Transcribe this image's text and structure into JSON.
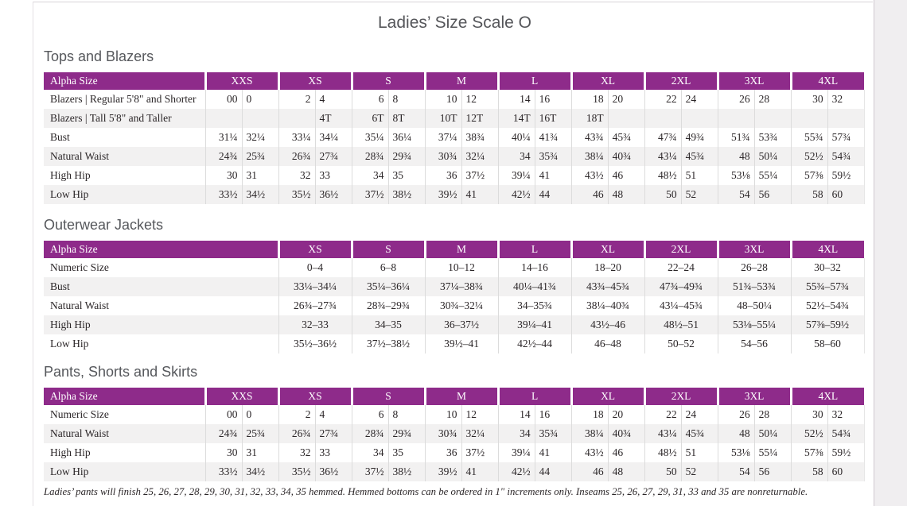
{
  "page": {
    "title": "Ladies’ Size Scale O",
    "footnote": "Ladies’ pants will finish 25, 26, 27, 28, 29, 30, 31, 32, 33, 34, 35 hemmed. Hemmed bottoms can be ordered in 1\" increments only. Inseams 25, 26, 27, 29, 31, 33 and 35 are nonreturnable."
  },
  "colors": {
    "header_bg": "#8e2b8a",
    "header_text": "#ffffff",
    "stripe": "#f2f1f1",
    "heading_text": "#56585c",
    "body_text": "#2b2628",
    "divider": "#dcdcdc",
    "gutter_bg": "#f0eef0"
  },
  "tables": [
    {
      "section_title": "Tops and Blazers",
      "type": "paired",
      "label_header": "Alpha Size",
      "size_headers": [
        "XXS",
        "XS",
        "S",
        "M",
        "L",
        "XL",
        "2XL",
        "3XL",
        "4XL"
      ],
      "rows": [
        {
          "label": "Blazers  |  Regular 5'8\" and Shorter",
          "values": [
            "00",
            "0",
            "2",
            "4",
            "6",
            "8",
            "10",
            "12",
            "14",
            "16",
            "18",
            "20",
            "22",
            "24",
            "26",
            "28",
            "30",
            "32"
          ]
        },
        {
          "label": "Blazers  |  Tall 5'8\" and Taller",
          "values": [
            "",
            "",
            "",
            "4T",
            "6T",
            "8T",
            "10T",
            "12T",
            "14T",
            "16T",
            "18T",
            "",
            "",
            "",
            "",
            "",
            "",
            ""
          ]
        },
        {
          "label": "Bust",
          "values": [
            "31¼",
            "32¼",
            "33¼",
            "34¼",
            "35¼",
            "36¼",
            "37¼",
            "38¾",
            "40¼",
            "41¾",
            "43¾",
            "45¾",
            "47¾",
            "49¾",
            "51¾",
            "53¾",
            "55¾",
            "57¾"
          ]
        },
        {
          "label": "Natural Waist",
          "values": [
            "24¾",
            "25¾",
            "26¾",
            "27¾",
            "28¾",
            "29¾",
            "30¾",
            "32¼",
            "34",
            "35¾",
            "38¼",
            "40¾",
            "43¼",
            "45¾",
            "48",
            "50¼",
            "52½",
            "54¾"
          ]
        },
        {
          "label": "High Hip",
          "values": [
            "30",
            "31",
            "32",
            "33",
            "34",
            "35",
            "36",
            "37½",
            "39¼",
            "41",
            "43½",
            "46",
            "48½",
            "51",
            "53⅛",
            "55¼",
            "57⅜",
            "59½"
          ]
        },
        {
          "label": "Low Hip",
          "values": [
            "33½",
            "34½",
            "35½",
            "36½",
            "37½",
            "38½",
            "39½",
            "41",
            "42½",
            "44",
            "46",
            "48",
            "50",
            "52",
            "54",
            "56",
            "58",
            "60"
          ]
        }
      ]
    },
    {
      "section_title": "Outerwear Jackets",
      "type": "single",
      "label_header": "Alpha Size",
      "size_headers": [
        "XS",
        "S",
        "M",
        "L",
        "XL",
        "2XL",
        "3XL",
        "4XL"
      ],
      "rows": [
        {
          "label": "Numeric Size",
          "values": [
            "0–4",
            "6–8",
            "10–12",
            "14–16",
            "18–20",
            "22–24",
            "26–28",
            "30–32"
          ]
        },
        {
          "label": "Bust",
          "values": [
            "33¼–34¼",
            "35¼–36¼",
            "37¼–38¾",
            "40¼–41¾",
            "43¾–45¾",
            "47¾–49¾",
            "51¾–53¾",
            "55¾–57¾"
          ]
        },
        {
          "label": "Natural Waist",
          "values": [
            "26¾–27¾",
            "28¾–29¾",
            "30¾–32¼",
            "34–35¾",
            "38¼–40¾",
            "43¼–45¾",
            "48–50¼",
            "52½–54¾"
          ]
        },
        {
          "label": "High Hip",
          "values": [
            "32–33",
            "34–35",
            "36–37½",
            "39¼–41",
            "43½–46",
            "48½–51",
            "53⅛–55¼",
            "57⅜–59½"
          ]
        },
        {
          "label": "Low Hip",
          "values": [
            "35½–36½",
            "37½–38½",
            "39½–41",
            "42½–44",
            "46–48",
            "50–52",
            "54–56",
            "58–60"
          ]
        }
      ]
    },
    {
      "section_title": "Pants, Shorts and Skirts",
      "type": "paired",
      "label_header": "Alpha Size",
      "size_headers": [
        "XXS",
        "XS",
        "S",
        "M",
        "L",
        "XL",
        "2XL",
        "3XL",
        "4XL"
      ],
      "rows": [
        {
          "label": "Numeric Size",
          "values": [
            "00",
            "0",
            "2",
            "4",
            "6",
            "8",
            "10",
            "12",
            "14",
            "16",
            "18",
            "20",
            "22",
            "24",
            "26",
            "28",
            "30",
            "32"
          ]
        },
        {
          "label": "Natural Waist",
          "values": [
            "24¾",
            "25¾",
            "26¾",
            "27¾",
            "28¾",
            "29¾",
            "30¾",
            "32¼",
            "34",
            "35¾",
            "38¼",
            "40¾",
            "43¼",
            "45¾",
            "48",
            "50¼",
            "52½",
            "54¾"
          ]
        },
        {
          "label": "High Hip",
          "values": [
            "30",
            "31",
            "32",
            "33",
            "34",
            "35",
            "36",
            "37½",
            "39¼",
            "41",
            "43½",
            "46",
            "48½",
            "51",
            "53⅛",
            "55¼",
            "57⅜",
            "59½"
          ]
        },
        {
          "label": "Low Hip",
          "values": [
            "33½",
            "34½",
            "35½",
            "36½",
            "37½",
            "38½",
            "39½",
            "41",
            "42½",
            "44",
            "46",
            "48",
            "50",
            "52",
            "54",
            "56",
            "58",
            "60"
          ]
        }
      ]
    }
  ]
}
